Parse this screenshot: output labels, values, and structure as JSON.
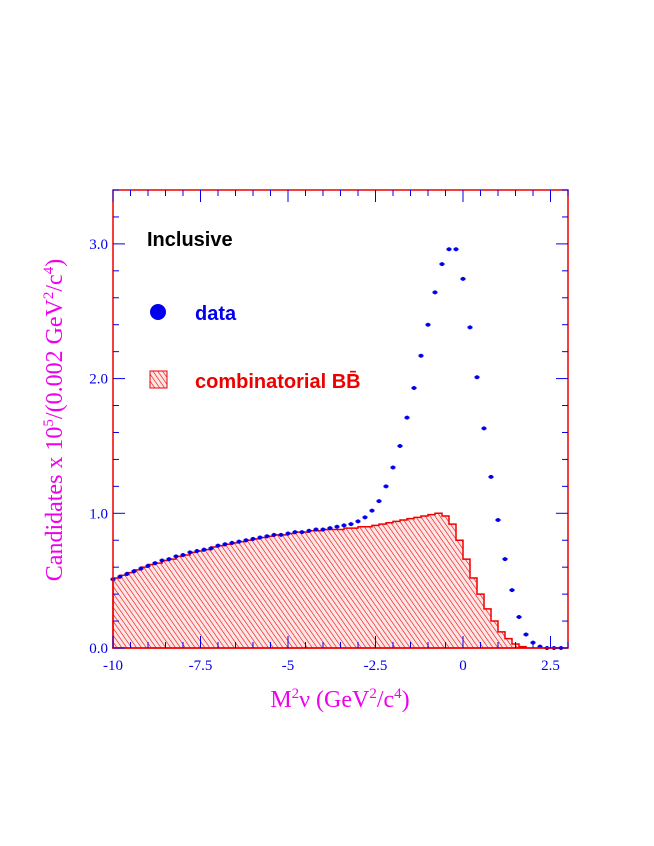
{
  "chart_data": {
    "type": "scatter",
    "title": "Inclusive",
    "xlabel": {
      "main": "M",
      "sup1": "2",
      "mid": "ν (GeV",
      "sup2": "2",
      "div": "/c",
      "sup3": "4",
      "end": ")"
    },
    "ylabel": {
      "main": "Candidates x 10",
      "sup1": "5",
      "mid": "/(0.002 GeV",
      "sup2": "2",
      "div": "/c",
      "sup3": "4",
      "end": ")"
    },
    "xlim": [
      -10,
      3
    ],
    "ylim": [
      0,
      3.4
    ],
    "x_ticks": [
      {
        "value": -10,
        "label": "-10"
      },
      {
        "value": -7.5,
        "label": "-7.5"
      },
      {
        "value": -5,
        "label": "-5"
      },
      {
        "value": -2.5,
        "label": "-2.5"
      },
      {
        "value": 0,
        "label": "0"
      },
      {
        "value": 2.5,
        "label": "2.5"
      }
    ],
    "y_ticks": [
      {
        "value": 0,
        "label": "0.0"
      },
      {
        "value": 1,
        "label": "1.0"
      },
      {
        "value": 2,
        "label": "2.0"
      },
      {
        "value": 3,
        "label": "3.0"
      }
    ],
    "legend": [
      {
        "label": "data",
        "marker": "circle",
        "color": "#0000ee"
      },
      {
        "label": "combinatorial BB̄",
        "marker": "hatched-box",
        "color": "#ee0000"
      }
    ],
    "series": [
      {
        "name": "data",
        "style": "points",
        "color": "#0000ee",
        "x": [
          -10.0,
          -9.8,
          -9.6,
          -9.4,
          -9.2,
          -9.0,
          -8.8,
          -8.6,
          -8.4,
          -8.2,
          -8.0,
          -7.8,
          -7.6,
          -7.4,
          -7.2,
          -7.0,
          -6.8,
          -6.6,
          -6.4,
          -6.2,
          -6.0,
          -5.8,
          -5.6,
          -5.4,
          -5.2,
          -5.0,
          -4.8,
          -4.6,
          -4.4,
          -4.2,
          -4.0,
          -3.8,
          -3.6,
          -3.4,
          -3.2,
          -3.0,
          -2.8,
          -2.6,
          -2.4,
          -2.2,
          -2.0,
          -1.8,
          -1.6,
          -1.4,
          -1.2,
          -1.0,
          -0.8,
          -0.6,
          -0.4,
          -0.2,
          0.0,
          0.2,
          0.4,
          0.6,
          0.8,
          1.0,
          1.2,
          1.4,
          1.6,
          1.8,
          2.0,
          2.2,
          2.4,
          2.6,
          2.8
        ],
        "y": [
          0.51,
          0.53,
          0.55,
          0.57,
          0.59,
          0.61,
          0.63,
          0.65,
          0.66,
          0.68,
          0.69,
          0.71,
          0.72,
          0.73,
          0.74,
          0.76,
          0.77,
          0.78,
          0.79,
          0.8,
          0.81,
          0.82,
          0.83,
          0.84,
          0.84,
          0.85,
          0.86,
          0.86,
          0.87,
          0.88,
          0.88,
          0.89,
          0.9,
          0.91,
          0.92,
          0.94,
          0.97,
          1.02,
          1.09,
          1.2,
          1.34,
          1.5,
          1.71,
          1.93,
          2.17,
          2.4,
          2.64,
          2.85,
          2.96,
          2.96,
          2.74,
          2.38,
          2.01,
          1.63,
          1.27,
          0.95,
          0.66,
          0.43,
          0.23,
          0.1,
          0.04,
          0.01,
          0.0,
          0.0,
          0.0
        ]
      },
      {
        "name": "combinatorial BB̄",
        "style": "hatched-histogram",
        "color": "#ee0000",
        "bin_width": 0.2,
        "x": [
          -10.0,
          -9.8,
          -9.6,
          -9.4,
          -9.2,
          -9.0,
          -8.8,
          -8.6,
          -8.4,
          -8.2,
          -8.0,
          -7.8,
          -7.6,
          -7.4,
          -7.2,
          -7.0,
          -6.8,
          -6.6,
          -6.4,
          -6.2,
          -6.0,
          -5.8,
          -5.6,
          -5.4,
          -5.2,
          -5.0,
          -4.8,
          -4.6,
          -4.4,
          -4.2,
          -4.0,
          -3.8,
          -3.6,
          -3.4,
          -3.2,
          -3.0,
          -2.8,
          -2.6,
          -2.4,
          -2.2,
          -2.0,
          -1.8,
          -1.6,
          -1.4,
          -1.2,
          -1.0,
          -0.8,
          -0.6,
          -0.4,
          -0.2,
          0.0,
          0.2,
          0.4,
          0.6,
          0.8,
          1.0,
          1.2,
          1.4,
          1.6,
          1.8,
          2.0,
          2.2,
          2.4,
          2.6,
          2.8
        ],
        "y": [
          0.52,
          0.54,
          0.56,
          0.58,
          0.6,
          0.62,
          0.63,
          0.65,
          0.66,
          0.68,
          0.69,
          0.71,
          0.72,
          0.73,
          0.75,
          0.76,
          0.77,
          0.78,
          0.79,
          0.8,
          0.81,
          0.82,
          0.83,
          0.84,
          0.84,
          0.85,
          0.86,
          0.86,
          0.87,
          0.87,
          0.88,
          0.88,
          0.88,
          0.89,
          0.89,
          0.9,
          0.9,
          0.91,
          0.92,
          0.93,
          0.94,
          0.95,
          0.96,
          0.97,
          0.98,
          0.99,
          1.0,
          0.98,
          0.92,
          0.8,
          0.66,
          0.52,
          0.4,
          0.29,
          0.2,
          0.12,
          0.07,
          0.03,
          0.01,
          0.0,
          0.0,
          0.0,
          0.0,
          0.0,
          0.0
        ]
      }
    ]
  }
}
